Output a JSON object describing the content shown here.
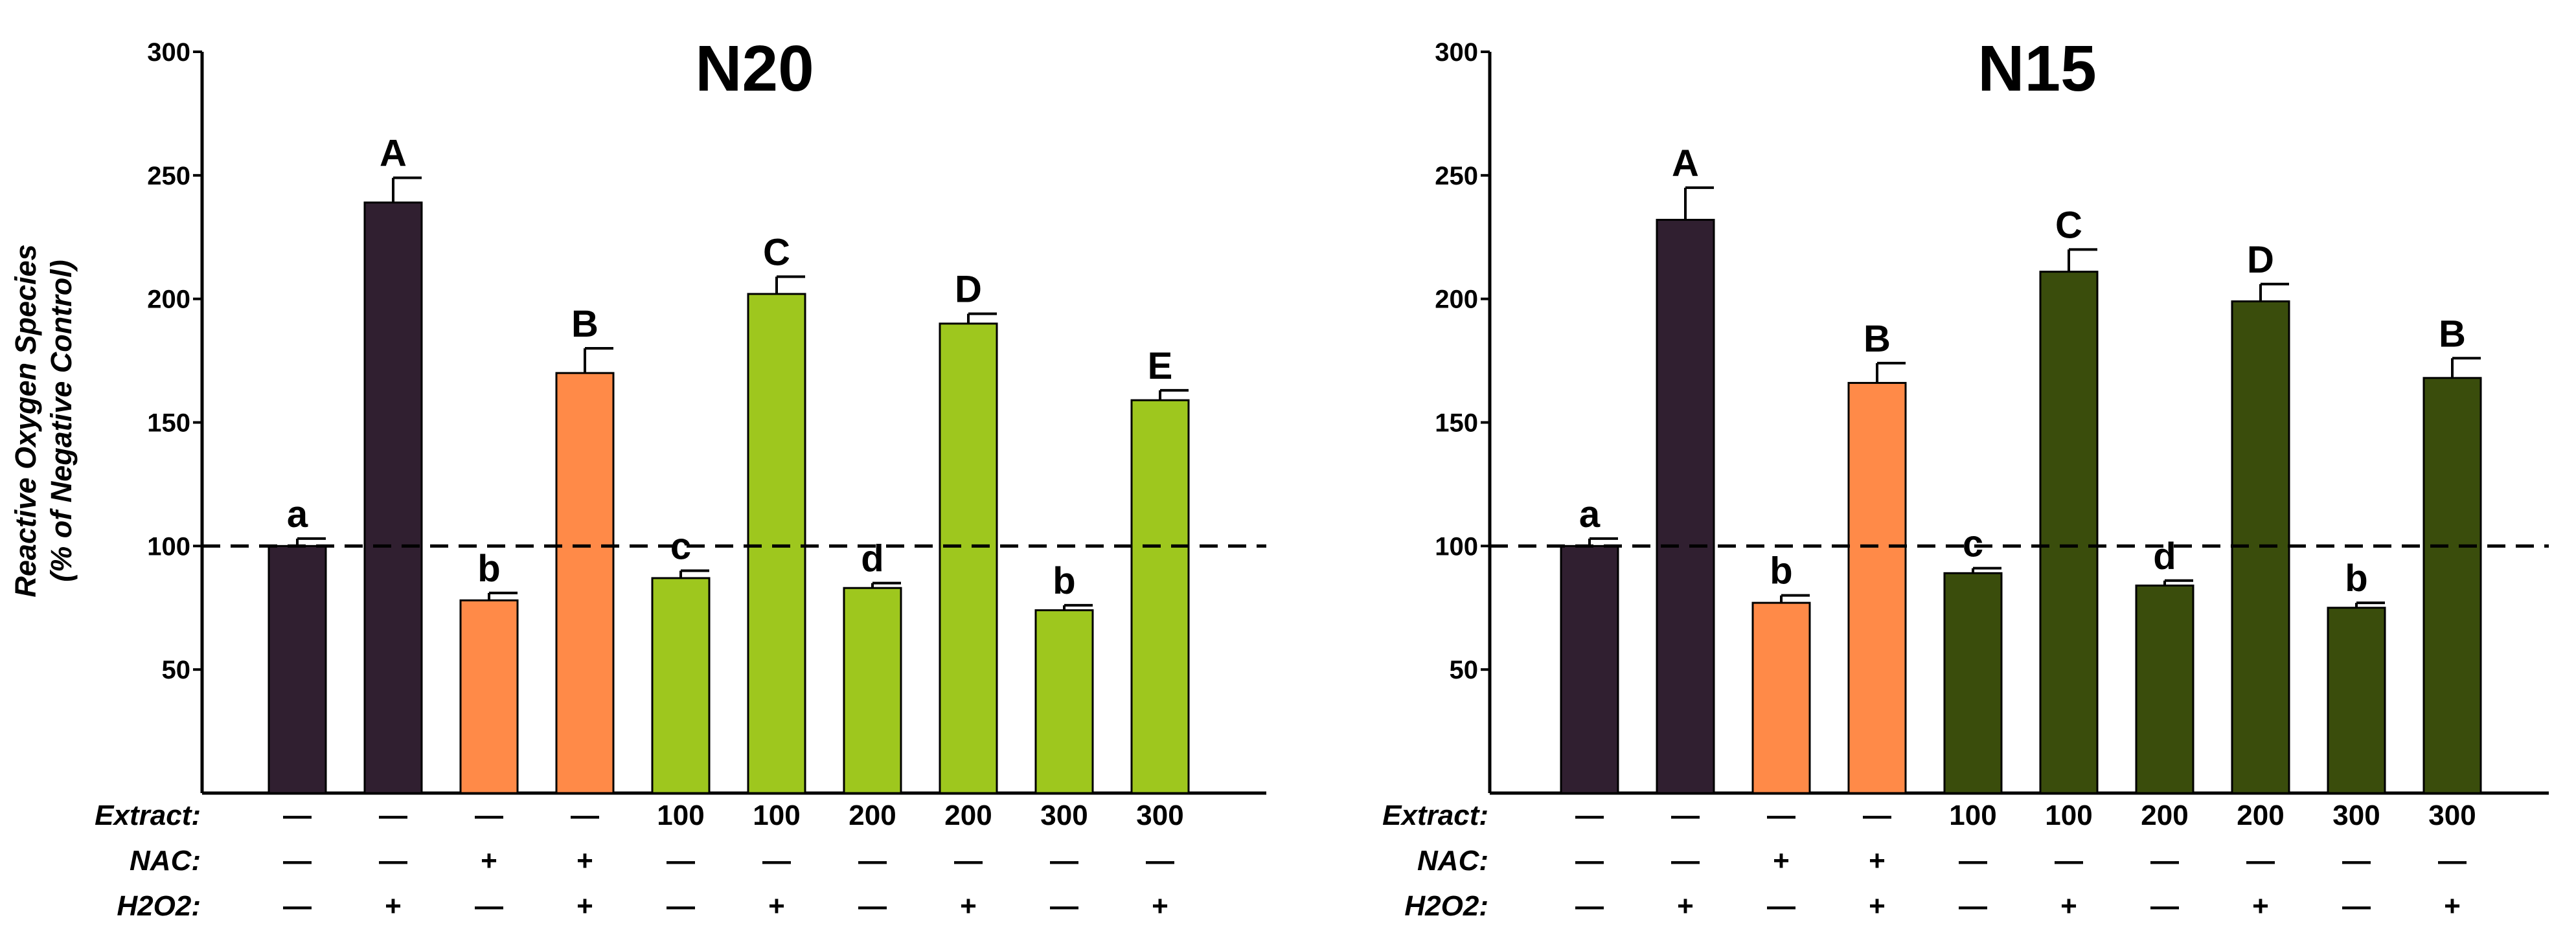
{
  "chart_data": [
    {
      "type": "bar",
      "title": "N20",
      "ylabel_lines": [
        "Reactive Oxygen Species",
        "(% of Negative Control)"
      ],
      "xlabel": "",
      "ylim": [
        0,
        300
      ],
      "yticks": [
        50,
        100,
        150,
        200,
        250,
        300
      ],
      "reference_line": 100,
      "conditions": {
        "row_labels": [
          "Extract:",
          "NAC:",
          "H2O2:"
        ],
        "extract": [
          "—",
          "—",
          "—",
          "—",
          "100",
          "100",
          "200",
          "200",
          "300",
          "300"
        ],
        "nac": [
          "—",
          "—",
          "+",
          "+",
          "—",
          "—",
          "—",
          "—",
          "—",
          "—"
        ],
        "h2o2": [
          "—",
          "+",
          "—",
          "+",
          "—",
          "+",
          "—",
          "+",
          "—",
          "+"
        ]
      },
      "values": [
        100,
        239,
        78,
        170,
        87,
        202,
        83,
        190,
        74,
        159
      ],
      "errors": [
        3,
        10,
        3,
        10,
        3,
        7,
        2,
        4,
        2,
        4
      ],
      "letters": [
        "a",
        "A",
        "b",
        "B",
        "c",
        "C",
        "d",
        "D",
        "b",
        "E"
      ],
      "colors": [
        "#301f30",
        "#301f30",
        "#ff8a48",
        "#ff8a48",
        "#9ec71e",
        "#9ec71e",
        "#9ec71e",
        "#9ec71e",
        "#9ec71e",
        "#9ec71e"
      ]
    },
    {
      "type": "bar",
      "title": "N15",
      "ylabel_lines": [],
      "xlabel": "",
      "ylim": [
        0,
        300
      ],
      "yticks": [
        50,
        100,
        150,
        200,
        250,
        300
      ],
      "reference_line": 100,
      "conditions": {
        "row_labels": [
          "Extract:",
          "NAC:",
          "H2O2:"
        ],
        "extract": [
          "—",
          "—",
          "—",
          "—",
          "100",
          "100",
          "200",
          "200",
          "300",
          "300"
        ],
        "nac": [
          "—",
          "—",
          "+",
          "+",
          "—",
          "—",
          "—",
          "—",
          "—",
          "—"
        ],
        "h2o2": [
          "—",
          "+",
          "—",
          "+",
          "—",
          "+",
          "—",
          "+",
          "—",
          "+"
        ]
      },
      "values": [
        100,
        232,
        77,
        166,
        89,
        211,
        84,
        199,
        75,
        168
      ],
      "errors": [
        3,
        13,
        3,
        8,
        2,
        9,
        2,
        7,
        2,
        8
      ],
      "letters": [
        "a",
        "A",
        "b",
        "B",
        "c",
        "C",
        "d",
        "D",
        "b",
        "B"
      ],
      "colors": [
        "#301f30",
        "#301f30",
        "#ff8a48",
        "#ff8a48",
        "#3a4d0c",
        "#3a4d0c",
        "#3a4d0c",
        "#3a4d0c",
        "#3a4d0c",
        "#3a4d0c"
      ]
    }
  ]
}
